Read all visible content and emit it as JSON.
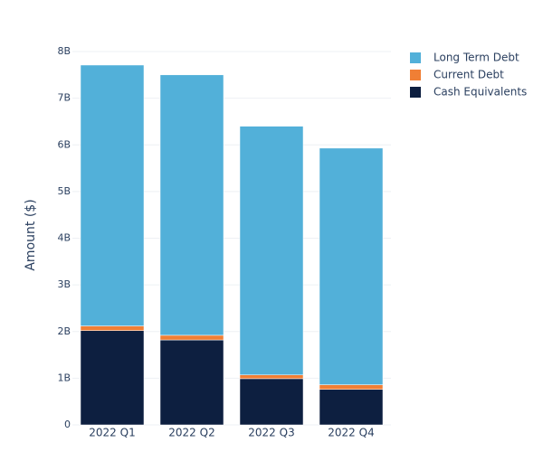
{
  "chart_data": {
    "type": "stacked-bar",
    "y_label": "Amount ($)",
    "categories": [
      "2022 Q1",
      "2022 Q2",
      "2022 Q3",
      "2022 Q4"
    ],
    "series": [
      {
        "name": "Cash Equivalents",
        "color": "#0d1f40",
        "values": [
          2020000000,
          1820000000,
          990000000,
          760000000
        ]
      },
      {
        "name": "Current Debt",
        "color": "#f07f35",
        "values": [
          100000000,
          100000000,
          80000000,
          100000000
        ]
      },
      {
        "name": "Long Term Debt",
        "color": "#52b0d9",
        "values": [
          5590000000,
          5580000000,
          5330000000,
          5070000000
        ]
      }
    ],
    "ylim": [
      0,
      8000000000
    ],
    "yticks": [
      0,
      {
        "value": 1000000000,
        "label": "1B"
      },
      {
        "value": 2000000000,
        "label": "2B"
      },
      {
        "value": 3000000000,
        "label": "3B"
      },
      {
        "value": 4000000000,
        "label": "4B"
      },
      {
        "value": 5000000000,
        "label": "5B"
      },
      {
        "value": 6000000000,
        "label": "6B"
      },
      {
        "value": 7000000000,
        "label": "7B"
      },
      {
        "value": 8000000000,
        "label": "8B"
      }
    ],
    "grid": true
  }
}
